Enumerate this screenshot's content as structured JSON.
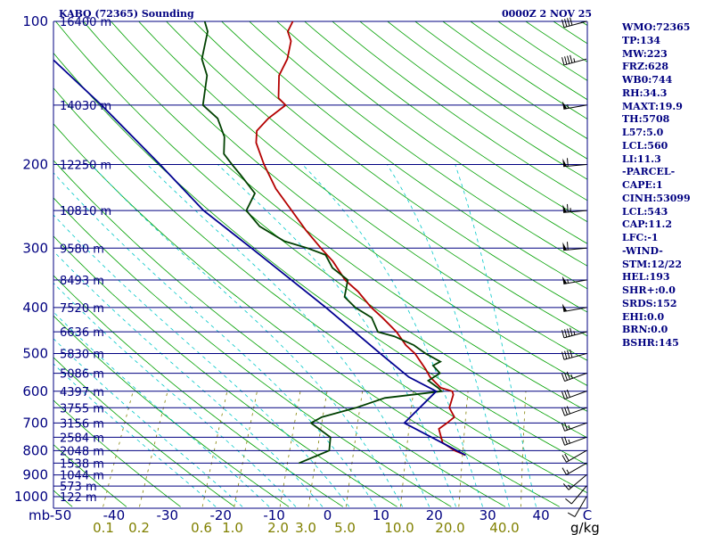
{
  "header": {
    "station": "KABQ (72365) Sounding",
    "datetime": "0000Z  2 NOV 25"
  },
  "indices": [
    "WMO:72365",
    "TP:134",
    "MW:223",
    "FRZ:628",
    "WB0:744",
    "RH:34.3",
    "MAXT:19.9",
    "TH:5708",
    "L57:5.0",
    "LCL:560",
    "LI:11.3",
    "-PARCEL-",
    "CAPE:1",
    "CINH:53099",
    "LCL:543",
    "CAP:11.2",
    "LFC:-1",
    "-WIND-",
    "STM:12/22",
    "HEL:193",
    "SHR+:0.0",
    "SRDS:152",
    "EHI:0.0",
    "BRN:0.0",
    "BSHR:145"
  ],
  "colors": {
    "isobar": "#000080",
    "dry_adiabat": "#00a000",
    "moist_adiabat": "#00c8c8",
    "mixing_ratio": "#808000",
    "temperature": "#b40000",
    "dewpoint": "#004000",
    "parcel": "#000090",
    "wind": "#000000"
  },
  "chart_data": {
    "type": "line",
    "title": "KABQ (72365) Sounding",
    "pressure_ticks": [
      100,
      200,
      300,
      400,
      500,
      600,
      700,
      800,
      900,
      1000
    ],
    "height_labels": [
      {
        "p": 100,
        "label": "16400 m"
      },
      {
        "p": 150,
        "label": "14030 m"
      },
      {
        "p": 200,
        "label": "12250 m"
      },
      {
        "p": 250,
        "label": "10810 m"
      },
      {
        "p": 300,
        "label": "9580 m"
      },
      {
        "p": 350,
        "label": "8493 m"
      },
      {
        "p": 400,
        "label": "7520 m"
      },
      {
        "p": 450,
        "label": "6636 m"
      },
      {
        "p": 500,
        "label": "5830 m"
      },
      {
        "p": 550,
        "label": "5086 m"
      },
      {
        "p": 600,
        "label": "4397 m"
      },
      {
        "p": 650,
        "label": "3755 m"
      },
      {
        "p": 700,
        "label": "3156 m"
      },
      {
        "p": 750,
        "label": "2584 m"
      },
      {
        "p": 800,
        "label": "2048 m"
      },
      {
        "p": 850,
        "label": "1538 m"
      },
      {
        "p": 900,
        "label": "1044 m"
      },
      {
        "p": 950,
        "label": "573 m"
      },
      {
        "p": 1000,
        "label": "122 m"
      }
    ],
    "temperature_ticks": [
      -50,
      -40,
      -30,
      -20,
      -10,
      0,
      10,
      20,
      30,
      40
    ],
    "temperature_axis_label": "C",
    "pressure_axis_label": "mb",
    "mixing_ratio_ticks": [
      "0.1",
      "0.2",
      "0.6",
      "1.0",
      "2.0",
      "3.0",
      "5.0",
      "10.0",
      "20.0",
      "40.0"
    ],
    "mixing_ratio_unit": "g/kg",
    "series": [
      {
        "key": "temperature",
        "values": [
          [
            818,
            22.0
          ],
          [
            800,
            19.5
          ],
          [
            770,
            16.5
          ],
          [
            720,
            14.5
          ],
          [
            700,
            15.5
          ],
          [
            680,
            16.3
          ],
          [
            650,
            14.5
          ],
          [
            610,
            14.0
          ],
          [
            600,
            13.5
          ],
          [
            590,
            11.0
          ],
          [
            560,
            8.0
          ],
          [
            540,
            6.5
          ],
          [
            500,
            3.0
          ],
          [
            480,
            0.5
          ],
          [
            450,
            -2.5
          ],
          [
            420,
            -6.5
          ],
          [
            400,
            -9.5
          ],
          [
            370,
            -13.5
          ],
          [
            350,
            -17.0
          ],
          [
            320,
            -21.0
          ],
          [
            300,
            -24.5
          ],
          [
            275,
            -29.0
          ],
          [
            250,
            -33.5
          ],
          [
            225,
            -38.5
          ],
          [
            200,
            -43.0
          ],
          [
            180,
            -46.5
          ],
          [
            170,
            -47.5
          ],
          [
            160,
            -46.5
          ],
          [
            150,
            -44.5
          ],
          [
            145,
            -46.5
          ],
          [
            130,
            -48.5
          ],
          [
            120,
            -48.5
          ],
          [
            110,
            -49.5
          ],
          [
            105,
            -51.0
          ],
          [
            100,
            -51.0
          ]
        ]
      },
      {
        "key": "dewpoint",
        "values": [
          [
            850,
            -8.5
          ],
          [
            800,
            -4.0
          ],
          [
            750,
            -5.0
          ],
          [
            700,
            -10.0
          ],
          [
            680,
            -8.5
          ],
          [
            650,
            -3.0
          ],
          [
            620,
            1.5
          ],
          [
            600,
            11.5
          ],
          [
            590,
            10.5
          ],
          [
            570,
            8.0
          ],
          [
            550,
            9.5
          ],
          [
            530,
            7.5
          ],
          [
            520,
            8.5
          ],
          [
            500,
            5.0
          ],
          [
            480,
            2.0
          ],
          [
            460,
            -2.5
          ],
          [
            450,
            -6.0
          ],
          [
            420,
            -8.5
          ],
          [
            400,
            -12.5
          ],
          [
            380,
            -15.5
          ],
          [
            350,
            -16.5
          ],
          [
            330,
            -20.5
          ],
          [
            310,
            -23.0
          ],
          [
            300,
            -27.0
          ],
          [
            290,
            -32.0
          ],
          [
            270,
            -38.0
          ],
          [
            250,
            -42.0
          ],
          [
            230,
            -42.0
          ],
          [
            210,
            -46.5
          ],
          [
            200,
            -49.0
          ],
          [
            190,
            -51.5
          ],
          [
            175,
            -53.0
          ],
          [
            160,
            -56.0
          ],
          [
            150,
            -60.0
          ],
          [
            130,
            -62.0
          ],
          [
            120,
            -64.5
          ],
          [
            105,
            -66.0
          ],
          [
            100,
            -67.5
          ]
        ]
      },
      {
        "key": "parcel",
        "values": [
          [
            818,
            22.0
          ],
          [
            700,
            7.5
          ],
          [
            600,
            10.5
          ],
          [
            560,
            4.0
          ],
          [
            500,
            -3.5
          ],
          [
            400,
            -18.0
          ],
          [
            300,
            -37.5
          ],
          [
            250,
            -50.0
          ],
          [
            200,
            -62.5
          ],
          [
            150,
            -79.0
          ],
          [
            120,
            -92.5
          ]
        ]
      }
    ],
    "wind_profile": [
      {
        "p": 1000,
        "speed_kt": 10,
        "dir_deg": 210
      },
      {
        "p": 950,
        "speed_kt": 10,
        "dir_deg": 220
      },
      {
        "p": 900,
        "speed_kt": 15,
        "dir_deg": 230
      },
      {
        "p": 850,
        "speed_kt": 15,
        "dir_deg": 240
      },
      {
        "p": 800,
        "speed_kt": 20,
        "dir_deg": 240
      },
      {
        "p": 750,
        "speed_kt": 25,
        "dir_deg": 250
      },
      {
        "p": 700,
        "speed_kt": 25,
        "dir_deg": 250
      },
      {
        "p": 650,
        "speed_kt": 30,
        "dir_deg": 250
      },
      {
        "p": 600,
        "speed_kt": 30,
        "dir_deg": 250
      },
      {
        "p": 550,
        "speed_kt": 35,
        "dir_deg": 250
      },
      {
        "p": 500,
        "speed_kt": 40,
        "dir_deg": 255
      },
      {
        "p": 450,
        "speed_kt": 45,
        "dir_deg": 255
      },
      {
        "p": 400,
        "speed_kt": 50,
        "dir_deg": 260
      },
      {
        "p": 350,
        "speed_kt": 55,
        "dir_deg": 260
      },
      {
        "p": 300,
        "speed_kt": 60,
        "dir_deg": 265
      },
      {
        "p": 250,
        "speed_kt": 65,
        "dir_deg": 265
      },
      {
        "p": 200,
        "speed_kt": 60,
        "dir_deg": 265
      },
      {
        "p": 150,
        "speed_kt": 55,
        "dir_deg": 260
      },
      {
        "p": 120,
        "speed_kt": 45,
        "dir_deg": 255
      },
      {
        "p": 100,
        "speed_kt": 40,
        "dir_deg": 255
      }
    ],
    "xlim": [
      -50,
      50
    ],
    "ylim": [
      1050,
      100
    ],
    "log_pressure_axis": true,
    "skewed_isotherms": true,
    "grid": true
  }
}
